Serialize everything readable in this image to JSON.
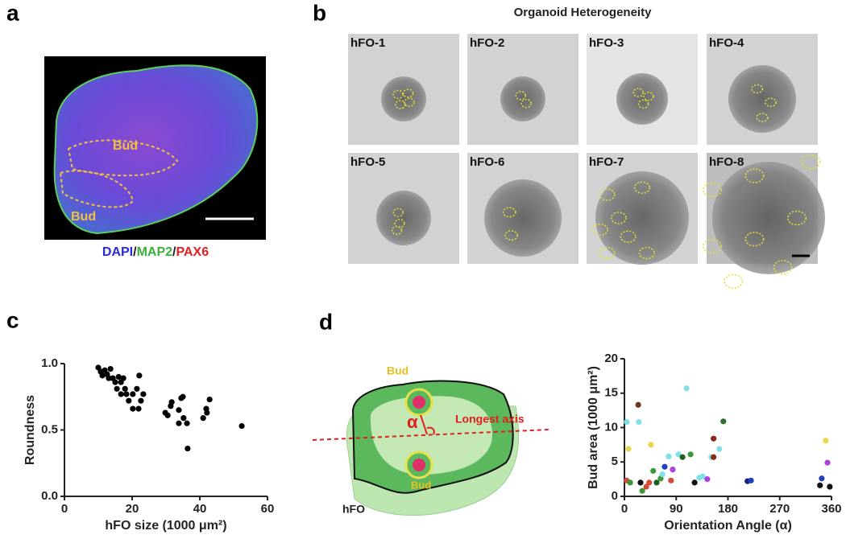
{
  "panels": {
    "letters": [
      "a",
      "b",
      "c",
      "d"
    ],
    "a": {
      "bud_labels": [
        "Bud",
        "Bud"
      ],
      "stain": [
        "DAPI",
        "/",
        "MAP2",
        "/",
        "PAX6"
      ]
    },
    "b": {
      "title": "Organoid Heterogeneity",
      "labels": [
        "hFO-1",
        "hFO-2",
        "hFO-3",
        "hFO-4",
        "hFO-5",
        "hFO-6",
        "hFO-7",
        "hFO-8"
      ]
    },
    "d": {
      "bud_top": "Bud",
      "axis_label": "Longest axis",
      "angle": "α",
      "organoid": "hFO",
      "bud_bottom": "Bud"
    }
  },
  "chart_data": [
    {
      "type": "scatter",
      "color": "#000000",
      "x_label": "hFO size (1000 μm²)",
      "y_label": "Roundness",
      "x": [
        10.0,
        10.7,
        11.2,
        11.9,
        12.6,
        13.6,
        13.1,
        14.3,
        15.0,
        16.0,
        16.7,
        17.4,
        17.9,
        15.5,
        16.7,
        18.3,
        20.2,
        21.4,
        22.1,
        19.0,
        20.2,
        21.9,
        22.6,
        23.3,
        29.8,
        30.5,
        31.4,
        31.7,
        33.8,
        34.5,
        35.0,
        35.2,
        33.8,
        36.4,
        36.2,
        41.0,
        42.1,
        42.9,
        41.9,
        52.4
      ],
      "values": [
        0.97,
        0.94,
        0.91,
        0.95,
        0.92,
        0.96,
        0.89,
        0.89,
        0.86,
        0.9,
        0.86,
        0.89,
        0.81,
        0.81,
        0.77,
        0.77,
        0.77,
        0.81,
        0.91,
        0.72,
        0.66,
        0.66,
        0.72,
        0.77,
        0.63,
        0.61,
        0.68,
        0.71,
        0.65,
        0.74,
        0.75,
        0.59,
        0.55,
        0.36,
        0.55,
        0.59,
        0.63,
        0.73,
        0.66,
        0.53
      ],
      "xlim": [
        0,
        60
      ],
      "xticks": [
        0,
        20,
        40,
        60
      ],
      "ylim": [
        0,
        1
      ],
      "yticks": [
        {
          "value": 0,
          "label": "0.0"
        },
        {
          "value": 0.5,
          "label": "0.5"
        },
        {
          "value": 1,
          "label": "1.0"
        }
      ]
    },
    {
      "type": "scatter",
      "x_label": "Orientation Angle (α)",
      "y_label": "Bud area (1000 μm²)",
      "x": [
        4,
        7,
        4,
        10,
        25,
        24,
        28,
        31,
        38,
        43,
        46,
        50,
        56,
        63,
        66,
        70,
        77,
        81,
        84,
        94,
        101,
        108,
        115,
        122,
        130,
        136,
        144,
        151,
        155,
        155,
        165,
        172,
        214,
        220,
        340,
        343,
        350,
        353,
        357
      ],
      "values": [
        10.8,
        6.9,
        2.3,
        2.0,
        10.8,
        13.3,
        2.0,
        0.8,
        1.4,
        2.0,
        7.5,
        3.7,
        2.0,
        2.6,
        3.2,
        4.3,
        5.8,
        2.3,
        3.9,
        6.1,
        5.7,
        15.7,
        6.1,
        2.0,
        2.7,
        2.9,
        2.5,
        5.7,
        5.7,
        8.4,
        6.9,
        10.9,
        2.2,
        2.3,
        1.6,
        2.6,
        8.1,
        4.9,
        1.4
      ],
      "colors": [
        "#7fe0e8",
        "#e8d84a",
        "#d64a3a",
        "#3a9a3a",
        "#7fe0e8",
        "#6b3a1a",
        "#111111",
        "#3a9a3a",
        "#d64a3a",
        "#d64a3a",
        "#e8d84a",
        "#3a9a3a",
        "#1f5f1f",
        "#3a9a3a",
        "#7fe0e8",
        "#2040c0",
        "#7fe0e8",
        "#d64a3a",
        "#b040e0",
        "#7fe0e8",
        "#1f5f1f",
        "#7fe0e8",
        "#3a9a3a",
        "#111111",
        "#7fe0e8",
        "#7fe0e8",
        "#b040e0",
        "#7fe0e8",
        "#8a2a1a",
        "#8a2a1a",
        "#7fe0e8",
        "#2f6f2f",
        "#102070",
        "#2040c0",
        "#111111",
        "#2040c0",
        "#e8d84a",
        "#b040e0",
        "#111111"
      ],
      "xlim": [
        0,
        360
      ],
      "xticks": [
        0,
        90,
        180,
        270,
        360
      ],
      "ylim": [
        0,
        20
      ],
      "yticks": [
        0,
        5,
        10,
        15,
        20
      ]
    }
  ]
}
